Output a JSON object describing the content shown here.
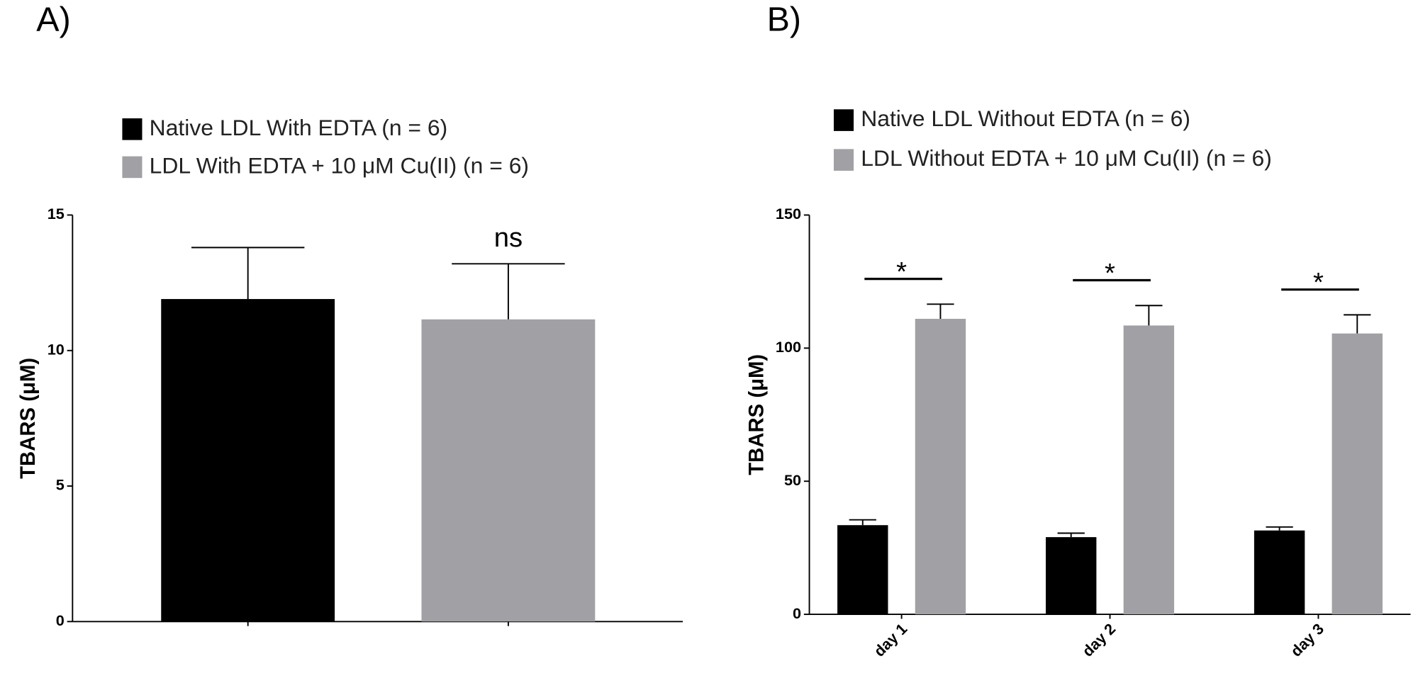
{
  "chart_data": [
    {
      "type": "bar",
      "panel": "A)",
      "ylabel": "TBARS (μM)",
      "categories": [
        null
      ],
      "series": [
        {
          "name": "Native LDL With EDTA (n = 6)",
          "color": "#000000",
          "values": [
            11.9
          ],
          "errors": [
            1.9
          ]
        },
        {
          "name": "LDL With EDTA + 10 μM Cu(II) (n = 6)",
          "color": "#a1a1a5",
          "values": [
            11.15
          ],
          "errors": [
            2.05
          ]
        }
      ],
      "ylim": [
        0,
        15
      ],
      "yticks": [
        0,
        5,
        10,
        15
      ],
      "annotations": [
        "ns"
      ]
    },
    {
      "type": "bar",
      "panel": "B)",
      "ylabel": "TBARS (μM)",
      "categories": [
        "day 1",
        "day 2",
        "day 3"
      ],
      "series": [
        {
          "name": "Native LDL Without EDTA (n = 6)",
          "color": "#000000",
          "values": [
            33.5,
            29,
            31.5
          ],
          "errors": [
            2,
            1.5,
            1.3
          ]
        },
        {
          "name": "LDL Without EDTA + 10 μM Cu(II) (n = 6)",
          "color": "#a1a1a5",
          "values": [
            111,
            108.5,
            105.5
          ],
          "errors": [
            5.5,
            7.5,
            7
          ]
        }
      ],
      "ylim": [
        0,
        150
      ],
      "yticks": [
        0,
        50,
        100,
        150
      ],
      "annotations": [
        "*",
        "*",
        "*"
      ]
    }
  ]
}
